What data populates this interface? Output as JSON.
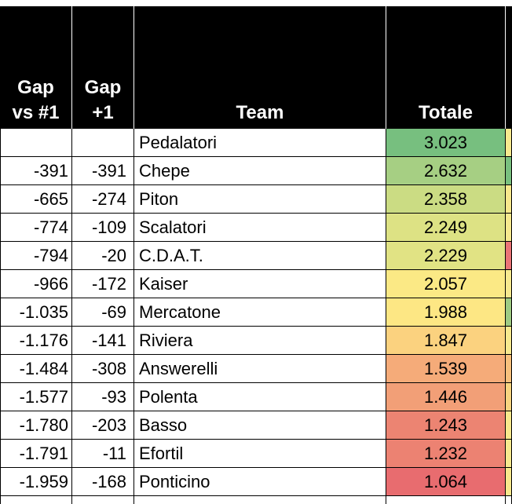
{
  "headers": {
    "gap_vs_1_line1": "Gap",
    "gap_vs_1_line2": "vs #1",
    "gap_prev_line1": "Gap",
    "gap_prev_line2": "+1",
    "team": "Team",
    "totale": "Totale"
  },
  "rows": [
    {
      "gap1": "",
      "gap2": "",
      "team": "Pedalatori",
      "totale": "3.023",
      "color": "#77bf7f",
      "side": "#f7e98e"
    },
    {
      "gap1": "-391",
      "gap2": "-391",
      "team": "Chepe",
      "totale": "2.632",
      "color": "#a6cf83",
      "side": "#79c07f"
    },
    {
      "gap1": "-665",
      "gap2": "-274",
      "team": "Piton",
      "totale": "2.358",
      "color": "#cbdc83",
      "side": "#f8e88c"
    },
    {
      "gap1": "-774",
      "gap2": "-109",
      "team": "Scalatori",
      "totale": "2.249",
      "color": "#dde284",
      "side": "#f7e98e"
    },
    {
      "gap1": "-794",
      "gap2": "-20",
      "team": "C.D.A.T.",
      "totale": "2.229",
      "color": "#e1e384",
      "side": "#ea7476"
    },
    {
      "gap1": "-966",
      "gap2": "-172",
      "team": "Kaiser",
      "totale": "2.057",
      "color": "#fbe985",
      "side": "#f7e98e"
    },
    {
      "gap1": "-1.035",
      "gap2": "-69",
      "team": "Mercatone",
      "totale": "1.988",
      "color": "#fde784",
      "side": "#9fcb83"
    },
    {
      "gap1": "-1.176",
      "gap2": "-141",
      "team": "Riviera",
      "totale": "1.847",
      "color": "#fbd27f",
      "side": "#f7e98e"
    },
    {
      "gap1": "-1.484",
      "gap2": "-308",
      "team": "Answerelli",
      "totale": "1.539",
      "color": "#f5ab79",
      "side": "#f8c07c"
    },
    {
      "gap1": "-1.577",
      "gap2": "-93",
      "team": "Polenta",
      "totale": "1.446",
      "color": "#f29f77",
      "side": "#f8d480"
    },
    {
      "gap1": "-1.780",
      "gap2": "-203",
      "team": "Basso",
      "totale": "1.243",
      "color": "#ec8472",
      "side": "#f8e88c"
    },
    {
      "gap1": "-1.791",
      "gap2": "-11",
      "team": "Efortil",
      "totale": "1.232",
      "color": "#ec8272",
      "side": "#f7e98e"
    },
    {
      "gap1": "-1.959",
      "gap2": "-168",
      "team": "Ponticino",
      "totale": "1.064",
      "color": "#e86c6f",
      "side": "#f8e88c"
    }
  ]
}
